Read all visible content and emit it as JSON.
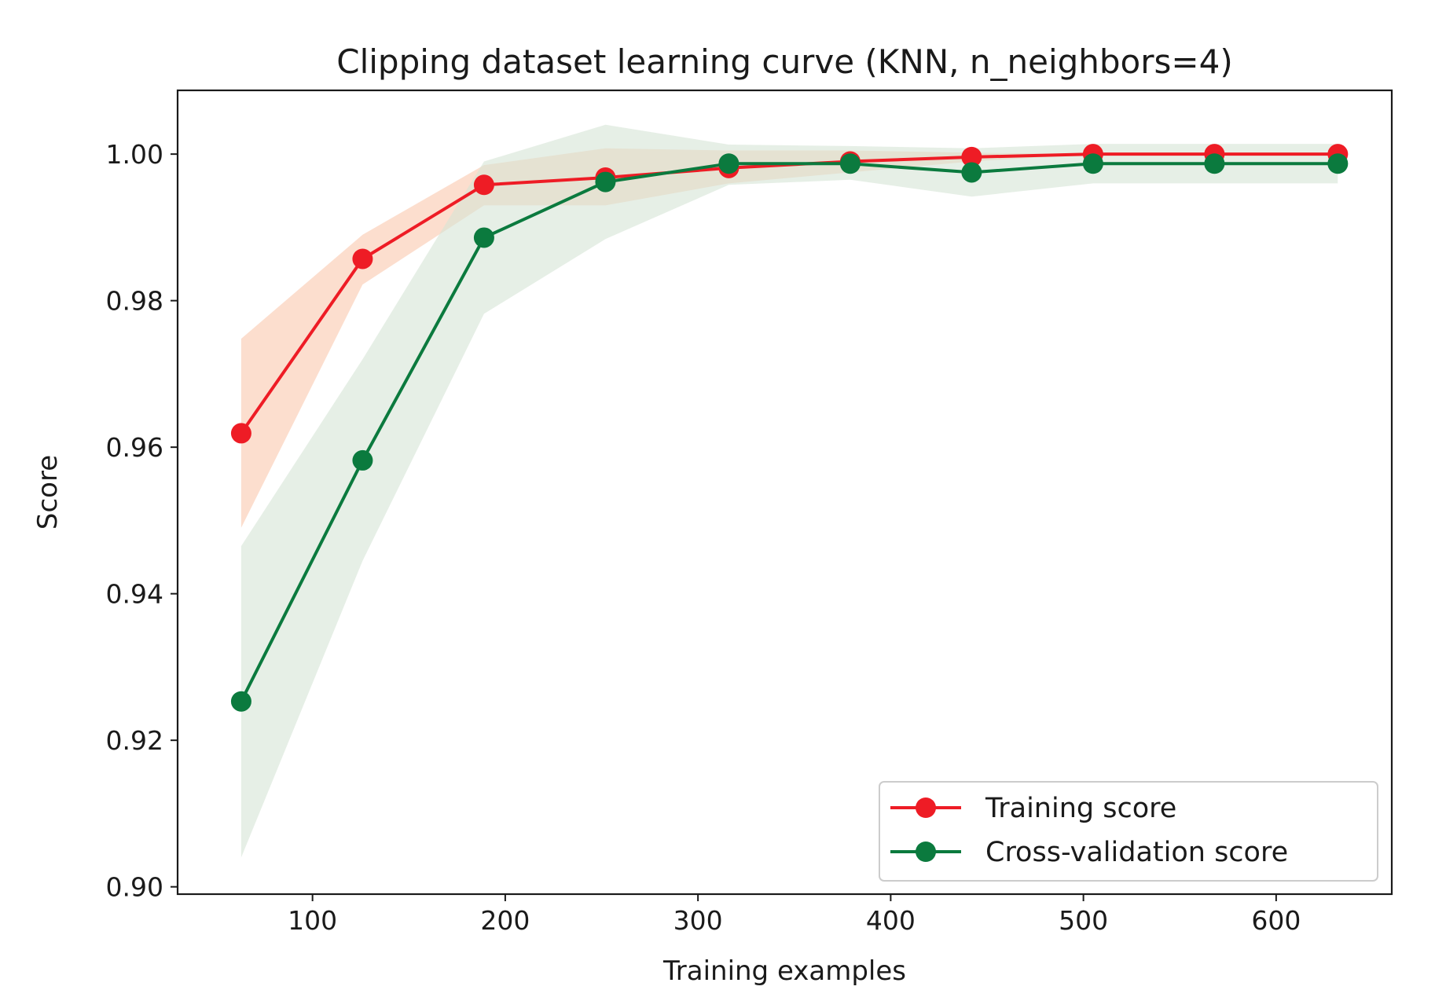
{
  "chart_data": {
    "type": "line",
    "title": "Clipping dataset learning curve (KNN, n_neighbors=4)",
    "xlabel": "Training examples",
    "ylabel": "Score",
    "xlim": [
      30,
      660
    ],
    "ylim": [
      0.899,
      1.0087
    ],
    "xticks": [
      100,
      200,
      300,
      400,
      500,
      600
    ],
    "xtick_labels": [
      "100",
      "200",
      "300",
      "400",
      "500",
      "600"
    ],
    "yticks": [
      0.9,
      0.92,
      0.94,
      0.96,
      0.98,
      1.0
    ],
    "ytick_labels": [
      "0.90",
      "0.92",
      "0.94",
      "0.96",
      "0.98",
      "1.00"
    ],
    "grid": false,
    "legend_position": "bottom-right",
    "x": [
      63,
      126,
      189,
      252,
      316,
      379,
      442,
      505,
      568,
      632
    ],
    "series": [
      {
        "name": "Training score",
        "color": "#ee1c25",
        "band_color": "#fbd3bd",
        "values": [
          0.9619,
          0.9857,
          0.9958,
          0.9968,
          0.9981,
          0.999,
          0.9996,
          1.0,
          1.0,
          1.0
        ],
        "lower": [
          0.949,
          0.9822,
          0.993,
          0.993,
          0.996,
          0.9975,
          0.999,
          1.0,
          1.0,
          1.0
        ],
        "upper": [
          0.9748,
          0.989,
          0.9985,
          1.0008,
          1.0005,
          1.0005,
          1.0002,
          1.0,
          1.0,
          1.0
        ]
      },
      {
        "name": "Cross-validation score",
        "color": "#0b7a3e",
        "band_color": "#d5e4d5",
        "values": [
          0.9253,
          0.9582,
          0.9886,
          0.9962,
          0.9987,
          0.9987,
          0.9975,
          0.9987,
          0.9987,
          0.9987
        ],
        "lower": [
          0.904,
          0.9445,
          0.9782,
          0.9884,
          0.9958,
          0.9965,
          0.9942,
          0.996,
          0.996,
          0.996
        ],
        "upper": [
          0.9465,
          0.972,
          0.999,
          1.004,
          1.0013,
          1.0011,
          1.0008,
          1.0014,
          1.0014,
          1.0014
        ]
      }
    ]
  }
}
